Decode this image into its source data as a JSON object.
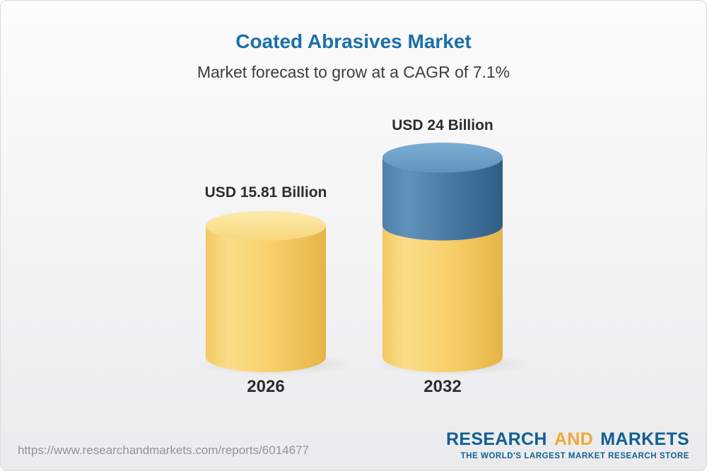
{
  "title": "Coated Abrasives Market",
  "subtitle": "Market forecast to grow at a CAGR of 7.1%",
  "colors": {
    "title_blue": "#1b6fa8",
    "bar_gold": "#f6cc5f",
    "bar_blue": "#47759e",
    "logo_blue": "#135f93",
    "logo_gold": "#efaa37",
    "text_dark": "#2d2d2f",
    "url_gray": "#939398"
  },
  "chart_data": {
    "type": "bar",
    "style": "3d-cylinder-stacked",
    "title": "Coated Abrasives Market",
    "subtitle": "Market forecast to grow at a CAGR of 7.1%",
    "cagr_percent": 7.1,
    "unit": "USD Billion",
    "categories": [
      "2026",
      "2032"
    ],
    "values": [
      15.81,
      24
    ],
    "value_labels": [
      "USD 15.81 Billion",
      "USD 24 Billion"
    ],
    "ylim": [
      0,
      24
    ],
    "grid": false,
    "legend": false,
    "stacked_segments": [
      [
        {
          "value": 15.81,
          "color": "gold"
        }
      ],
      [
        {
          "value": 15.81,
          "color": "gold"
        },
        {
          "value": 8.19,
          "color": "blue"
        }
      ]
    ]
  },
  "footer": {
    "url": "https://www.researchandmarkets.com/reports/6014677"
  },
  "logo": {
    "research": "RESEARCH",
    "and": "AND",
    "markets": "MARKETS",
    "tagline": "THE WORLD'S LARGEST MARKET RESEARCH STORE"
  }
}
